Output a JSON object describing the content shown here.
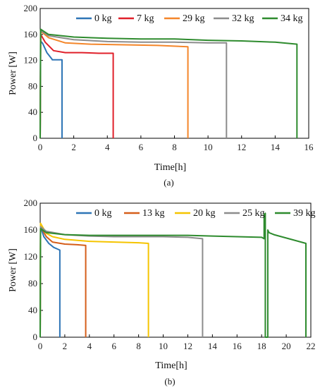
{
  "chart_data": [
    {
      "type": "line",
      "caption": "(a)",
      "xlabel": "Time[h]",
      "ylabel": "Power [W]",
      "xlim": [
        0,
        16
      ],
      "ylim": [
        0,
        200
      ],
      "xticks": [
        0,
        2,
        4,
        6,
        8,
        10,
        12,
        14,
        16
      ],
      "yticks": [
        0,
        40,
        80,
        120,
        160,
        200
      ],
      "legend_position": "top",
      "series": [
        {
          "name": "0 kg",
          "color": "#2e75b6",
          "x": [
            0,
            0.02,
            0.15,
            0.4,
            0.7,
            0.72,
            1.3,
            1.3
          ],
          "y": [
            0,
            150,
            146,
            132,
            122,
            121,
            121,
            0
          ]
        },
        {
          "name": "7 kg",
          "color": "#e0202a",
          "x": [
            0,
            0.03,
            0.3,
            0.8,
            1.5,
            2.5,
            3.5,
            4.35,
            4.35
          ],
          "y": [
            0,
            160,
            148,
            135,
            132,
            132,
            131,
            131,
            0
          ]
        },
        {
          "name": "29 kg",
          "color": "#f4862a",
          "x": [
            0,
            0.03,
            0.5,
            1.5,
            3,
            5,
            7,
            8.8,
            8.8
          ],
          "y": [
            0,
            165,
            155,
            147,
            145,
            144,
            143,
            141,
            0
          ]
        },
        {
          "name": "32 kg",
          "color": "#8c8c8c",
          "x": [
            0,
            0.03,
            0.5,
            2,
            4,
            6,
            8,
            10,
            11.1,
            11.1
          ],
          "y": [
            0,
            166,
            158,
            152,
            149,
            148,
            148,
            147,
            147,
            0
          ]
        },
        {
          "name": "34 kg",
          "color": "#2e8b2e",
          "x": [
            0,
            0.03,
            0.5,
            2,
            4,
            6,
            8,
            10,
            12,
            14,
            15.3,
            15.3
          ],
          "y": [
            0,
            168,
            160,
            156,
            154,
            153,
            153,
            151,
            150,
            148,
            145,
            0
          ]
        }
      ]
    },
    {
      "type": "line",
      "caption": "(b)",
      "xlabel": "Time[h]",
      "ylabel": "Power [W]",
      "xlim": [
        0,
        22
      ],
      "ylim": [
        0,
        200
      ],
      "xticks": [
        0,
        2,
        4,
        6,
        8,
        10,
        12,
        14,
        16,
        18,
        20,
        22
      ],
      "yticks": [
        0,
        40,
        80,
        120,
        160,
        200
      ],
      "legend_position": "top",
      "series": [
        {
          "name": "0 kg",
          "color": "#2e75b6",
          "x": [
            0,
            0.03,
            0.3,
            0.7,
            1.1,
            1.6,
            1.6
          ],
          "y": [
            0,
            165,
            150,
            140,
            134,
            130,
            0
          ]
        },
        {
          "name": "13 kg",
          "color": "#d55e1a",
          "x": [
            0,
            0.03,
            0.5,
            1,
            2,
            3,
            3.7,
            3.7
          ],
          "y": [
            0,
            165,
            150,
            142,
            139,
            138,
            137,
            0
          ]
        },
        {
          "name": "20 kg",
          "color": "#f5c400",
          "x": [
            0,
            0.03,
            0.5,
            1,
            2,
            4,
            6,
            8,
            8.8,
            8.8
          ],
          "y": [
            0,
            170,
            155,
            150,
            146,
            143,
            142,
            141,
            140,
            0
          ]
        },
        {
          "name": "25 kg",
          "color": "#8c8c8c",
          "x": [
            0,
            0.03,
            0.5,
            2,
            4,
            6,
            8,
            10,
            12,
            13.2,
            13.2
          ],
          "y": [
            0,
            165,
            158,
            153,
            151,
            150,
            150,
            150,
            149,
            147,
            0
          ]
        },
        {
          "name": "39 kg",
          "color": "#2e8b2e",
          "x": [
            0,
            0.03,
            0.5,
            2,
            4,
            6,
            8,
            10,
            12,
            14,
            16,
            18,
            18.2,
            18.2,
            18.3,
            18.3,
            18.5,
            18.5,
            18.6,
            19,
            20,
            21,
            21.6,
            21.6
          ],
          "y": [
            0,
            162,
            156,
            153,
            152,
            152,
            152,
            152,
            152,
            151,
            150,
            149,
            147,
            183,
            185,
            0,
            0,
            160,
            156,
            153,
            148,
            143,
            140,
            0
          ]
        }
      ]
    }
  ]
}
